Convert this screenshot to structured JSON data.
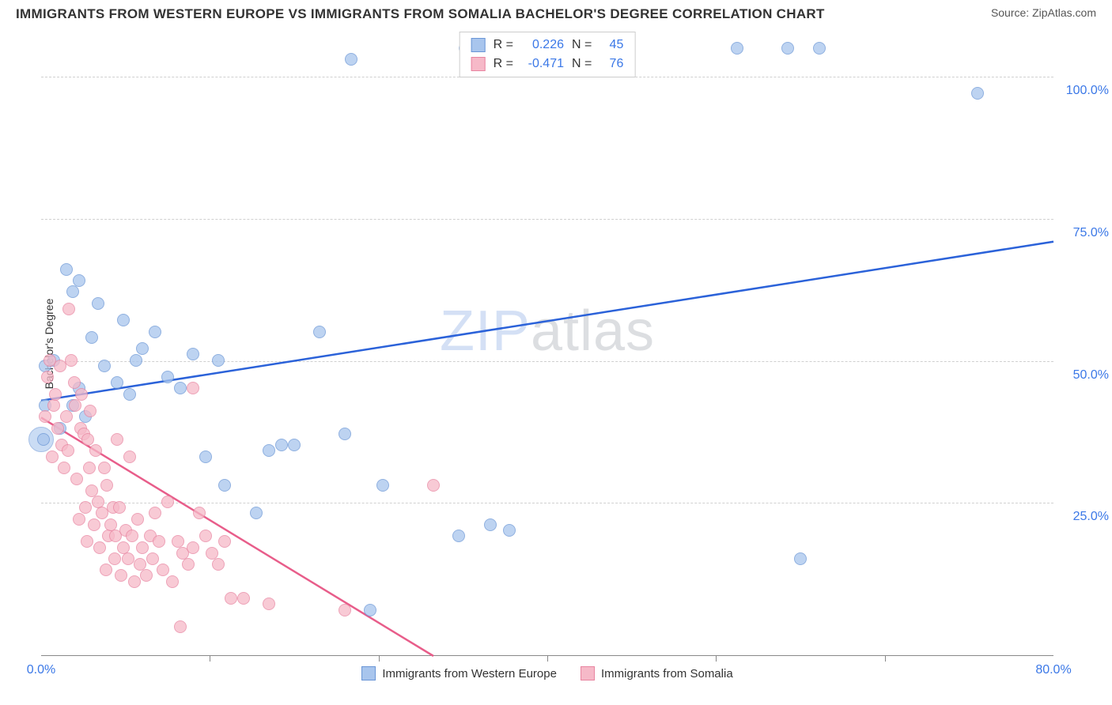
{
  "title": "IMMIGRANTS FROM WESTERN EUROPE VS IMMIGRANTS FROM SOMALIA BACHELOR'S DEGREE CORRELATION CHART",
  "source_label": "Source: ZipAtlas.com",
  "watermark_zip": "ZIP",
  "watermark_atlas": "atlas",
  "ylabel": "Bachelor's Degree",
  "chart": {
    "type": "scatter",
    "xlim": [
      0,
      80
    ],
    "ylim": [
      -2,
      108
    ],
    "x_ticks": [
      0,
      80
    ],
    "x_tick_labels": [
      "0.0%",
      "80.0%"
    ],
    "x_minor_ticks": [
      13.33,
      26.67,
      40,
      53.33,
      66.67
    ],
    "y_grid": [
      25,
      50,
      75,
      100
    ],
    "y_tick_labels": [
      "25.0%",
      "50.0%",
      "75.0%",
      "100.0%"
    ],
    "background_color": "#ffffff",
    "grid_color": "#d0d0d0",
    "series": [
      {
        "name": "Immigrants from Western Europe",
        "color_fill": "#a8c5ed",
        "color_stroke": "#6a96d6",
        "opacity": 0.75,
        "marker_radius": 8,
        "regression": {
          "x1": 0,
          "y1": 43,
          "x2": 80,
          "y2": 71,
          "color": "#2b62d9",
          "width": 2.5
        },
        "stats": {
          "R": "0.226",
          "N": "45"
        },
        "points": [
          [
            0.2,
            36
          ],
          [
            0.3,
            42
          ],
          [
            0.3,
            49
          ],
          [
            1,
            50
          ],
          [
            1.5,
            38
          ],
          [
            2,
            66
          ],
          [
            2.5,
            62
          ],
          [
            3,
            64
          ],
          [
            2.5,
            42
          ],
          [
            3,
            45
          ],
          [
            3.5,
            40
          ],
          [
            4,
            54
          ],
          [
            4.5,
            60
          ],
          [
            5,
            49
          ],
          [
            6,
            46
          ],
          [
            6.5,
            57
          ],
          [
            7,
            44
          ],
          [
            7.5,
            50
          ],
          [
            8,
            52
          ],
          [
            9,
            55
          ],
          [
            10,
            47
          ],
          [
            11,
            45
          ],
          [
            12,
            51
          ],
          [
            13,
            33
          ],
          [
            14,
            50
          ],
          [
            14.5,
            28
          ],
          [
            17,
            23
          ],
          [
            18,
            34
          ],
          [
            19,
            35
          ],
          [
            20,
            35
          ],
          [
            22,
            55
          ],
          [
            24,
            37
          ],
          [
            26,
            6
          ],
          [
            27,
            28
          ],
          [
            33,
            19
          ],
          [
            33.5,
            105
          ],
          [
            35,
            104
          ],
          [
            35.5,
            21
          ],
          [
            37,
            20
          ],
          [
            24.5,
            103
          ],
          [
            55,
            105
          ],
          [
            59,
            105
          ],
          [
            60,
            15
          ],
          [
            61.5,
            105
          ],
          [
            74,
            97
          ]
        ],
        "big_point": {
          "x": 0,
          "y": 36,
          "r": 16
        }
      },
      {
        "name": "Immigrants from Somalia",
        "color_fill": "#f6b9c8",
        "color_stroke": "#e884a0",
        "opacity": 0.75,
        "marker_radius": 8,
        "regression": {
          "x1": 0,
          "y1": 40,
          "x2": 31,
          "y2": -2,
          "color": "#e85d8a",
          "width": 2.5
        },
        "stats": {
          "R": "-0.471",
          "N": "76"
        },
        "points": [
          [
            0.3,
            40
          ],
          [
            0.5,
            47
          ],
          [
            0.7,
            50
          ],
          [
            0.9,
            33
          ],
          [
            1,
            42
          ],
          [
            1.1,
            44
          ],
          [
            1.3,
            38
          ],
          [
            1.5,
            49
          ],
          [
            1.6,
            35
          ],
          [
            1.8,
            31
          ],
          [
            2,
            40
          ],
          [
            2.1,
            34
          ],
          [
            2.2,
            59
          ],
          [
            2.4,
            50
          ],
          [
            2.6,
            46
          ],
          [
            2.7,
            42
          ],
          [
            2.8,
            29
          ],
          [
            3,
            22
          ],
          [
            3.1,
            38
          ],
          [
            3.2,
            44
          ],
          [
            3.4,
            37
          ],
          [
            3.5,
            24
          ],
          [
            3.6,
            18
          ],
          [
            3.7,
            36
          ],
          [
            3.8,
            31
          ],
          [
            3.9,
            41
          ],
          [
            4,
            27
          ],
          [
            4.2,
            21
          ],
          [
            4.3,
            34
          ],
          [
            4.5,
            25
          ],
          [
            4.6,
            17
          ],
          [
            4.8,
            23
          ],
          [
            5,
            31
          ],
          [
            5.1,
            13
          ],
          [
            5.2,
            28
          ],
          [
            5.3,
            19
          ],
          [
            5.5,
            21
          ],
          [
            5.7,
            24
          ],
          [
            5.8,
            15
          ],
          [
            5.9,
            19
          ],
          [
            6,
            36
          ],
          [
            6.2,
            24
          ],
          [
            6.3,
            12
          ],
          [
            6.5,
            17
          ],
          [
            6.7,
            20
          ],
          [
            6.9,
            15
          ],
          [
            7,
            33
          ],
          [
            7.2,
            19
          ],
          [
            7.4,
            11
          ],
          [
            7.6,
            22
          ],
          [
            7.8,
            14
          ],
          [
            8,
            17
          ],
          [
            8.3,
            12
          ],
          [
            8.6,
            19
          ],
          [
            8.8,
            15
          ],
          [
            9,
            23
          ],
          [
            9.3,
            18
          ],
          [
            9.6,
            13
          ],
          [
            10,
            25
          ],
          [
            10.4,
            11
          ],
          [
            10.8,
            18
          ],
          [
            11.2,
            16
          ],
          [
            11.6,
            14
          ],
          [
            12,
            17
          ],
          [
            12.5,
            23
          ],
          [
            13,
            19
          ],
          [
            13.5,
            16
          ],
          [
            14,
            14
          ],
          [
            14.5,
            18
          ],
          [
            11,
            3
          ],
          [
            15,
            8
          ],
          [
            16,
            8
          ],
          [
            18,
            7
          ],
          [
            24,
            6
          ],
          [
            12,
            45
          ],
          [
            31,
            28
          ]
        ]
      }
    ]
  },
  "legend_labels": {
    "R": "R  =",
    "N": "N  ="
  }
}
